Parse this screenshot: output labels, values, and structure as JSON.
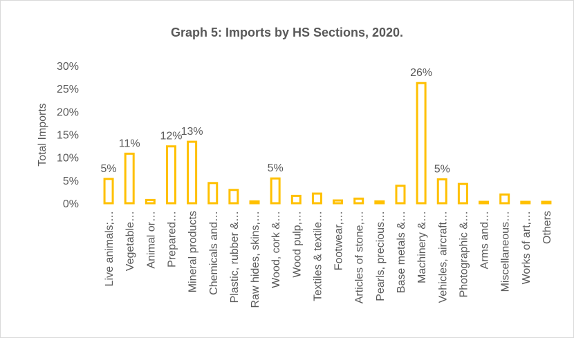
{
  "chart_data": {
    "type": "bar",
    "title": "Graph 5: Imports by HS Sections, 2020.",
    "y_label": "Total Imports",
    "categories": [
      "Live animals;…",
      "Vegetable…",
      "Animal or…",
      "Prepared…",
      "Mineral products",
      "Chemicals and…",
      "Plastic, rubber &…",
      "Raw hides, skins,…",
      "Wood, cork &…",
      "Wood pulp,…",
      "Textiles & textile…",
      "Footwear,…",
      "Articles of stone,…",
      "Pearls, precious…",
      "Base metals &…",
      "Machinery &…",
      "Vehicles, aircraft…",
      "Photographic &…",
      "Arms and…",
      "Miscellaneous…",
      "Works of art,…",
      "Others"
    ],
    "values": [
      5.3,
      10.8,
      0.7,
      12.4,
      13.4,
      4.4,
      2.9,
      0.4,
      5.4,
      1.6,
      2.1,
      0.6,
      1.0,
      0.4,
      3.8,
      26.2,
      5.2,
      4.2,
      0.3,
      1.9,
      0.3,
      0.3
    ],
    "value_labels": [
      "5%",
      "11%",
      null,
      "12%",
      "13%",
      null,
      null,
      null,
      "5%",
      null,
      null,
      null,
      null,
      null,
      null,
      "26%",
      "5%",
      null,
      null,
      null,
      null,
      null
    ],
    "color": "#FFC000",
    "ylim": [
      0,
      30
    ],
    "yticks": [
      {
        "value": 0,
        "label": "0%"
      },
      {
        "value": 5,
        "label": "5%"
      },
      {
        "value": 10,
        "label": "10%"
      },
      {
        "value": 15,
        "label": "15%"
      },
      {
        "value": 20,
        "label": "20%"
      },
      {
        "value": 25,
        "label": "25%"
      },
      {
        "value": 30,
        "label": "30%"
      }
    ],
    "grid": false
  }
}
